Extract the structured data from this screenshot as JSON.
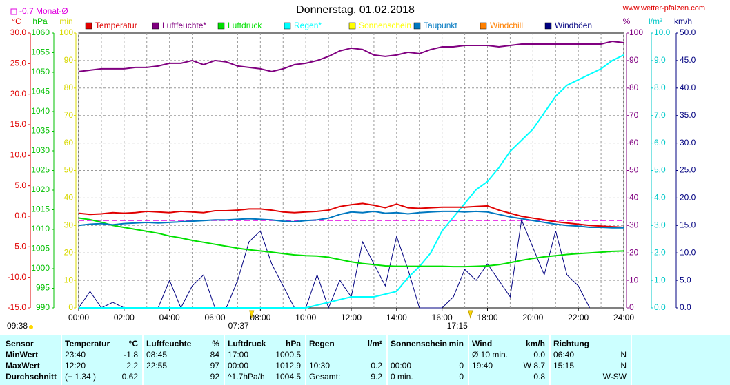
{
  "chart_data": {
    "type": "line",
    "title": "Donnerstag, 01.02.2018",
    "source": "www.wetter-pfalzen.com",
    "monthly_avg": {
      "label": "-0.7 Monat-Ø",
      "value": -0.7,
      "color": "#e000e0"
    },
    "daylight": "09:38",
    "sunrise": "07:37",
    "sunset": "17:15",
    "xlim": [
      0,
      24
    ],
    "xticks": [
      {
        "value": 0,
        "label": "00:00"
      },
      {
        "value": 2,
        "label": "02:00"
      },
      {
        "value": 4,
        "label": "04:00"
      },
      {
        "value": 6,
        "label": "06:00"
      },
      {
        "value": 8,
        "label": "08:00"
      },
      {
        "value": 10,
        "label": "10:00"
      },
      {
        "value": 12,
        "label": "12:00"
      },
      {
        "value": 14,
        "label": "14:00"
      },
      {
        "value": 16,
        "label": "16:00"
      },
      {
        "value": 18,
        "label": "18:00"
      },
      {
        "value": 20,
        "label": "20:00"
      },
      {
        "value": 22,
        "label": "22:00"
      },
      {
        "value": 24,
        "label": "24:00"
      }
    ],
    "grid": true,
    "axes": [
      {
        "unit": "°C",
        "side": "left",
        "color": "#e00000",
        "lim": [
          -15,
          30
        ],
        "ticks": [
          {
            "value": 30,
            "label": "30.0"
          },
          {
            "value": 25,
            "label": "25.0"
          },
          {
            "value": 20,
            "label": "20.0"
          },
          {
            "value": 15,
            "label": "15.0"
          },
          {
            "value": 10,
            "label": "10.0"
          },
          {
            "value": 5,
            "label": "5.0"
          },
          {
            "value": 0,
            "label": "0.0"
          },
          {
            "value": -5,
            "label": "-5.0"
          },
          {
            "value": -10,
            "label": "-10.0"
          },
          {
            "value": -15,
            "label": "-15.0"
          }
        ]
      },
      {
        "unit": "hPa",
        "side": "left",
        "color": "#00c000",
        "lim": [
          990,
          1060
        ],
        "ticks": [
          1060,
          1055,
          1050,
          1045,
          1040,
          1035,
          1030,
          1025,
          1020,
          1015,
          1010,
          1005,
          1000,
          995,
          990
        ]
      },
      {
        "unit": "min",
        "side": "left",
        "color": "#d8d800",
        "lim": [
          0,
          100
        ],
        "ticks": [
          100,
          90,
          80,
          70,
          60,
          50,
          40,
          30,
          20,
          10,
          0
        ]
      },
      {
        "unit": "%",
        "side": "right",
        "color": "#800080",
        "lim": [
          0,
          100
        ],
        "ticks": [
          100,
          90,
          80,
          70,
          60,
          50,
          40,
          30,
          20,
          10,
          0
        ]
      },
      {
        "unit": "l/m²",
        "side": "right",
        "color": "#00c8c8",
        "lim": [
          0,
          10
        ],
        "ticks": [
          {
            "value": 10,
            "label": "10.0"
          },
          {
            "value": 9,
            "label": "9.0"
          },
          {
            "value": 8,
            "label": "8.0"
          },
          {
            "value": 7,
            "label": "7.0"
          },
          {
            "value": 6,
            "label": "6.0"
          },
          {
            "value": 5,
            "label": "5.0"
          },
          {
            "value": 4,
            "label": "4.0"
          },
          {
            "value": 3,
            "label": "3.0"
          },
          {
            "value": 2,
            "label": "2.0"
          },
          {
            "value": 1,
            "label": "1.0"
          },
          {
            "value": 0,
            "label": "0.0"
          }
        ]
      },
      {
        "unit": "km/h",
        "side": "right",
        "color": "#000080",
        "lim": [
          0,
          50
        ],
        "ticks": [
          {
            "value": 50,
            "label": "50.0"
          },
          {
            "value": 45,
            "label": "45.0"
          },
          {
            "value": 40,
            "label": "40.0"
          },
          {
            "value": 35,
            "label": "35.0"
          },
          {
            "value": 30,
            "label": "30.0"
          },
          {
            "value": 25,
            "label": "25.0"
          },
          {
            "value": 20,
            "label": "20.0"
          },
          {
            "value": 15,
            "label": "15.0"
          },
          {
            "value": 10,
            "label": "10.0"
          },
          {
            "value": 5,
            "label": "5.0"
          },
          {
            "value": 0,
            "label": "0.0"
          }
        ]
      }
    ],
    "x": [
      0,
      0.5,
      1,
      1.5,
      2,
      2.5,
      3,
      3.5,
      4,
      4.5,
      5,
      5.5,
      6,
      6.5,
      7,
      7.5,
      8,
      8.5,
      9,
      9.5,
      10,
      10.5,
      11,
      11.5,
      12,
      12.5,
      13,
      13.5,
      14,
      14.5,
      15,
      15.5,
      16,
      16.5,
      17,
      17.5,
      18,
      18.5,
      19,
      19.5,
      20,
      20.5,
      21,
      21.5,
      22,
      22.5,
      23,
      23.5,
      24
    ],
    "series": [
      {
        "name": "Temperatur",
        "color": "#e00000",
        "axis": "°C",
        "values": [
          0.5,
          0.3,
          0.4,
          0.6,
          0.5,
          0.6,
          0.8,
          0.7,
          0.6,
          0.8,
          0.7,
          0.6,
          0.9,
          0.9,
          1.0,
          1.2,
          1.2,
          1.0,
          0.7,
          0.6,
          0.7,
          0.8,
          1.0,
          1.6,
          1.9,
          2.1,
          1.8,
          1.4,
          2.0,
          1.4,
          1.3,
          1.4,
          1.5,
          1.5,
          1.5,
          1.6,
          1.7,
          1.0,
          0.5,
          0.0,
          -0.3,
          -0.6,
          -0.9,
          -1.1,
          -1.3,
          -1.5,
          -1.6,
          -1.7,
          -1.8
        ]
      },
      {
        "name": "Luftfeuchte*",
        "color": "#800080",
        "axis": "%",
        "values": [
          86,
          86.5,
          87,
          87,
          87,
          87.5,
          87.5,
          88,
          89,
          89,
          90,
          88.5,
          90,
          89.5,
          88,
          87.5,
          87,
          86,
          87,
          88.5,
          89,
          90,
          91.5,
          93.5,
          94.5,
          94,
          92,
          91.5,
          92,
          93,
          92.5,
          94,
          95,
          95,
          95.5,
          95.5,
          95.5,
          95,
          95.5,
          96,
          96,
          96,
          96,
          96,
          96,
          96,
          96,
          97,
          96.5
        ]
      },
      {
        "name": "Luftdruck",
        "color": "#00e000",
        "axis": "hPa",
        "values": [
          1012.9,
          1012.5,
          1011.8,
          1011,
          1010.5,
          1010,
          1009.5,
          1009,
          1008.3,
          1007.8,
          1007.2,
          1006.7,
          1006.2,
          1005.7,
          1005.2,
          1004.8,
          1004.5,
          1004.2,
          1003.8,
          1003.5,
          1003.3,
          1003.2,
          1002.9,
          1002.3,
          1001.7,
          1001.3,
          1001,
          1000.7,
          1000.6,
          1000.6,
          1000.6,
          1000.6,
          1000.6,
          1000.5,
          1000.5,
          1000.6,
          1000.7,
          1001,
          1001.5,
          1002.1,
          1002.6,
          1003,
          1003.3,
          1003.6,
          1003.8,
          1004,
          1004.2,
          1004.4,
          1004.5
        ]
      },
      {
        "name": "Regen*",
        "color": "#00ffff",
        "axis": "l/m²",
        "values": [
          0,
          0,
          0,
          0,
          0,
          0,
          0,
          0,
          0,
          0,
          0,
          0,
          0,
          0,
          0,
          0,
          0,
          0,
          0,
          0,
          0,
          0.1,
          0.2,
          0.3,
          0.4,
          0.4,
          0.4,
          0.5,
          0.6,
          1.1,
          1.5,
          2.0,
          2.8,
          3.3,
          3.8,
          4.3,
          4.6,
          5.1,
          5.7,
          6.1,
          6.5,
          7.1,
          7.7,
          8.1,
          8.3,
          8.5,
          8.7,
          9.0,
          9.2
        ]
      },
      {
        "name": "Sonnenschein",
        "color": "#ffff00",
        "axis": "min"
      },
      {
        "name": "Taupunkt",
        "color": "#0078c0",
        "axis": "°C",
        "values": [
          -1.5,
          -1.3,
          -1.2,
          -1.4,
          -1.2,
          -1.1,
          -1.0,
          -1.1,
          -1.0,
          -0.9,
          -0.8,
          -0.7,
          -0.6,
          -0.6,
          -0.5,
          -0.4,
          -0.5,
          -0.6,
          -0.8,
          -0.9,
          -0.7,
          -0.6,
          -0.3,
          0.3,
          0.7,
          0.6,
          0.8,
          0.5,
          0.6,
          0.4,
          0.6,
          0.7,
          0.8,
          0.8,
          0.7,
          0.8,
          0.7,
          0.3,
          -0.1,
          -0.4,
          -0.7,
          -1.0,
          -1.3,
          -1.5,
          -1.6,
          -1.8,
          -1.8,
          -1.9,
          -1.9
        ]
      },
      {
        "name": "Windchill",
        "color": "#ff8000",
        "axis": "°C"
      },
      {
        "name": "Windböen",
        "color": "#000080",
        "axis": "km/h",
        "values": [
          0,
          3,
          0,
          1,
          0,
          0,
          0,
          0,
          5,
          0,
          4,
          6,
          0,
          0,
          5,
          12,
          14,
          8,
          4,
          0,
          0,
          6,
          0,
          5,
          2,
          12,
          8,
          4,
          13,
          7,
          0,
          0,
          0,
          2,
          7,
          5,
          8,
          5,
          2,
          16,
          11,
          6,
          14,
          6,
          4,
          0,
          null,
          null,
          null
        ]
      }
    ]
  },
  "table": {
    "header": [
      "Sensor",
      [
        "Temperatur",
        "°C"
      ],
      [
        "Luftfeuchte",
        "%"
      ],
      [
        "Luftdruck",
        "hPa"
      ],
      [
        "Regen",
        "l/m²"
      ],
      [
        "Sonnenschein",
        "min"
      ],
      [
        "Wind",
        "km/h"
      ],
      [
        "Richtung",
        null
      ]
    ],
    "rows": [
      [
        "MinWert",
        [
          "23:40",
          "-1.8"
        ],
        [
          "08:45",
          "84"
        ],
        [
          "17:00",
          "1000.5"
        ],
        [
          null,
          null
        ],
        [
          null,
          null
        ],
        [
          "Ø 10 min.",
          "0.0"
        ],
        [
          "06:40",
          "N"
        ]
      ],
      [
        "MaxWert",
        [
          "12:20",
          "2.2"
        ],
        [
          "22:55",
          "97"
        ],
        [
          "00:00",
          "1012.9"
        ],
        [
          "10:30",
          "0.2"
        ],
        [
          "00:00",
          "0"
        ],
        [
          "19:40",
          "W 8.7"
        ],
        [
          "15:15",
          "N"
        ]
      ],
      [
        "Durchschnitt",
        [
          "(+ 1.34 )",
          "0.62"
        ],
        [
          null,
          "92"
        ],
        [
          "^1.7hPa/h",
          "1004.5"
        ],
        [
          "Gesamt:",
          "9.2"
        ],
        [
          "0 min.",
          "0"
        ],
        [
          null,
          "0.8"
        ],
        [
          null,
          "W-SW"
        ]
      ]
    ]
  }
}
